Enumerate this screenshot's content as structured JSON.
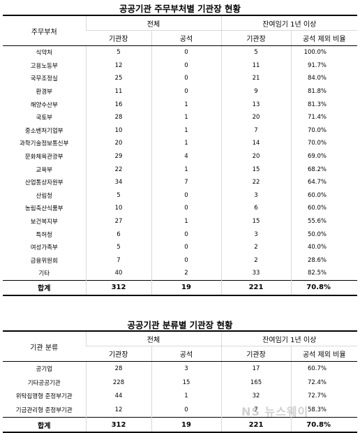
{
  "table1": {
    "title": "공공기관 주무부처별 기관장 현황",
    "header": {
      "row_header": "주무부처",
      "group_total": "전체",
      "group_remaining": "잔여임기 1년 이상",
      "col_heads": "기관장",
      "col_vacant": "공석",
      "col_heads2": "기관장",
      "col_ratio": "공석 제외 비율"
    },
    "rows": [
      {
        "name": "식약처",
        "heads": "5",
        "vacant": "0",
        "remain": "5",
        "ratio": "100.0%"
      },
      {
        "name": "고용노동부",
        "heads": "12",
        "vacant": "0",
        "remain": "11",
        "ratio": "91.7%"
      },
      {
        "name": "국무조정실",
        "heads": "25",
        "vacant": "0",
        "remain": "21",
        "ratio": "84.0%"
      },
      {
        "name": "환경부",
        "heads": "11",
        "vacant": "0",
        "remain": "9",
        "ratio": "81.8%"
      },
      {
        "name": "해양수산부",
        "heads": "16",
        "vacant": "1",
        "remain": "13",
        "ratio": "81.3%"
      },
      {
        "name": "국토부",
        "heads": "28",
        "vacant": "1",
        "remain": "20",
        "ratio": "71.4%"
      },
      {
        "name": "중소벤처기업부",
        "heads": "10",
        "vacant": "1",
        "remain": "7",
        "ratio": "70.0%"
      },
      {
        "name": "과학기술정보통신부",
        "heads": "20",
        "vacant": "1",
        "remain": "14",
        "ratio": "70.0%"
      },
      {
        "name": "문화체육관광부",
        "heads": "29",
        "vacant": "4",
        "remain": "20",
        "ratio": "69.0%"
      },
      {
        "name": "교육부",
        "heads": "22",
        "vacant": "1",
        "remain": "15",
        "ratio": "68.2%"
      },
      {
        "name": "산업통상자원부",
        "heads": "34",
        "vacant": "7",
        "remain": "22",
        "ratio": "64.7%"
      },
      {
        "name": "산림청",
        "heads": "5",
        "vacant": "0",
        "remain": "3",
        "ratio": "60.0%"
      },
      {
        "name": "농림축산식품부",
        "heads": "10",
        "vacant": "0",
        "remain": "6",
        "ratio": "60.0%"
      },
      {
        "name": "보건복지부",
        "heads": "27",
        "vacant": "1",
        "remain": "15",
        "ratio": "55.6%"
      },
      {
        "name": "특허청",
        "heads": "6",
        "vacant": "0",
        "remain": "3",
        "ratio": "50.0%"
      },
      {
        "name": "여성가족부",
        "heads": "5",
        "vacant": "0",
        "remain": "2",
        "ratio": "40.0%"
      },
      {
        "name": "금융위원회",
        "heads": "7",
        "vacant": "0",
        "remain": "2",
        "ratio": "28.6%"
      },
      {
        "name": "기타",
        "heads": "40",
        "vacant": "2",
        "remain": "33",
        "ratio": "82.5%"
      }
    ],
    "total": {
      "name": "합계",
      "heads": "312",
      "vacant": "19",
      "remain": "221",
      "ratio": "70.8%"
    }
  },
  "table2": {
    "title": "공공기관 분류별 기관장 현황",
    "header": {
      "row_header": "기관 분류",
      "group_total": "전체",
      "group_remaining": "잔여임기 1년 이상",
      "col_heads": "기관장",
      "col_vacant": "공석",
      "col_heads2": "기관장",
      "col_ratio": "공석 제외 비율"
    },
    "rows": [
      {
        "name": "공기업",
        "heads": "28",
        "vacant": "3",
        "remain": "17",
        "ratio": "60.7%"
      },
      {
        "name": "기타공공기관",
        "heads": "228",
        "vacant": "15",
        "remain": "165",
        "ratio": "72.4%"
      },
      {
        "name": "위탁집행형 준정부기관",
        "heads": "44",
        "vacant": "1",
        "remain": "32",
        "ratio": "72.7%"
      },
      {
        "name": "기금관리형 준정부기관",
        "heads": "12",
        "vacant": "0",
        "remain": "7",
        "ratio": "58.3%"
      }
    ],
    "total": {
      "name": "합계",
      "heads": "312",
      "vacant": "19",
      "remain": "221",
      "ratio": "70.8%"
    }
  },
  "watermark": "NS 뉴스웨이"
}
